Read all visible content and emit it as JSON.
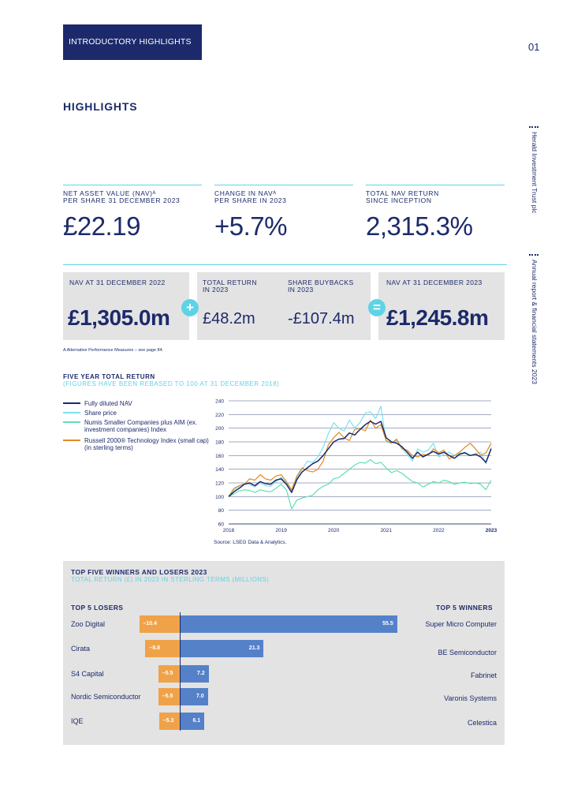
{
  "header": {
    "section_tab": "INTRODUCTORY HIGHLIGHTS",
    "page_number": "01",
    "heading": "HIGHLIGHTS"
  },
  "side": {
    "company": "Herald Investment Trust plc",
    "report": "Annual report & financial statements 2023"
  },
  "kpis": [
    {
      "label_line1": "NET ASSET VALUE (NAV)ᴬ",
      "label_line2": "PER SHARE 31 DECEMBER 2023",
      "value": "£22.19"
    },
    {
      "label_line1": "CHANGE IN NAVᴬ",
      "label_line2": "PER SHARE IN 2023",
      "value": "+5.7%"
    },
    {
      "label_line1": "TOTAL NAV RETURN",
      "label_line2": "SINCE INCEPTION",
      "value": "2,315.3%"
    }
  ],
  "bridge": {
    "start_label": "NAV AT 31 DECEMBER 2022",
    "start_value": "£1,305.0m",
    "plus_symbol": "+",
    "return_label_line1": "TOTAL RETURN",
    "return_label_line2": "IN 2023",
    "return_value": "£48.2m",
    "buyback_label_line1": "SHARE BUYBACKS",
    "buyback_label_line2": "IN 2023",
    "buyback_value": "-£107.4m",
    "equals_symbol": "=",
    "end_label": "NAV AT 31 DECEMBER 2023",
    "end_value": "£1,245.8m"
  },
  "footnote": "A     Alternative Performance Measures – see page 84.",
  "chart_data": {
    "type": "line",
    "title": "FIVE YEAR TOTAL RETURN",
    "subtitle": "(FIGURES HAVE BEEN REBASED TO 100 AT 31 DECEMBER 2018)",
    "x_ticks": [
      "2018",
      "2019",
      "2020",
      "2021",
      "2022",
      "2023"
    ],
    "ylim": [
      60,
      240
    ],
    "y_ticks": [
      60,
      80,
      100,
      120,
      140,
      160,
      180,
      200,
      220,
      240
    ],
    "grid": true,
    "legend_position": "left",
    "source": "Source: LSEG Data & Analytics.",
    "series": [
      {
        "name": "Fully diluted NAV",
        "color": "#1c2a6b",
        "x": [
          2018.0,
          2018.1,
          2018.2,
          2018.3,
          2018.4,
          2018.5,
          2018.6,
          2018.7,
          2018.8,
          2018.9,
          2019.0,
          2019.1,
          2019.2,
          2019.3,
          2019.4,
          2019.5,
          2019.6,
          2019.7,
          2019.8,
          2019.9,
          2020.0,
          2020.1,
          2020.2,
          2020.3,
          2020.4,
          2020.5,
          2020.6,
          2020.7,
          2020.8,
          2020.9,
          2021.0,
          2021.1,
          2021.2,
          2021.3,
          2021.4,
          2021.5,
          2021.6,
          2021.7,
          2021.8,
          2021.9,
          2022.0,
          2022.1,
          2022.2,
          2022.3,
          2022.4,
          2022.5,
          2022.6,
          2022.7,
          2022.8,
          2022.9,
          2023.0
        ],
        "y": [
          100,
          107,
          112,
          118,
          120,
          116,
          122,
          119,
          118,
          124,
          126,
          118,
          106,
          125,
          136,
          142,
          148,
          152,
          160,
          170,
          180,
          184,
          185,
          193,
          190,
          198,
          205,
          210,
          206,
          210,
          186,
          180,
          178,
          173,
          165,
          156,
          165,
          158,
          162,
          166,
          162,
          165,
          160,
          156,
          162,
          164,
          160,
          162,
          158,
          150,
          170
        ]
      },
      {
        "name": "Share price",
        "color": "#7fe0ee",
        "x": [
          2018.0,
          2018.1,
          2018.2,
          2018.3,
          2018.4,
          2018.5,
          2018.6,
          2018.7,
          2018.8,
          2018.9,
          2019.0,
          2019.1,
          2019.2,
          2019.3,
          2019.4,
          2019.5,
          2019.6,
          2019.7,
          2019.8,
          2019.9,
          2020.0,
          2020.1,
          2020.2,
          2020.3,
          2020.4,
          2020.5,
          2020.6,
          2020.7,
          2020.8,
          2020.9,
          2021.0,
          2021.1,
          2021.2,
          2021.3,
          2021.4,
          2021.5,
          2021.6,
          2021.7,
          2021.8,
          2021.9,
          2022.0,
          2022.1,
          2022.2,
          2022.3,
          2022.4,
          2022.5,
          2022.6,
          2022.7,
          2022.8,
          2022.9,
          2023.0
        ],
        "y": [
          100,
          110,
          115,
          120,
          118,
          114,
          120,
          116,
          115,
          122,
          128,
          120,
          108,
          128,
          140,
          152,
          150,
          158,
          172,
          192,
          208,
          200,
          196,
          212,
          200,
          208,
          222,
          224,
          214,
          232,
          180,
          178,
          182,
          170,
          162,
          152,
          170,
          165,
          168,
          178,
          158,
          162,
          165,
          160,
          163,
          165,
          160,
          162,
          165,
          148,
          172
        ]
      },
      {
        "name": "Numis Smaller Companies plus AIM (ex. investment companies) Index",
        "color": "#5fe0b0",
        "x": [
          2018.0,
          2018.1,
          2018.2,
          2018.3,
          2018.4,
          2018.5,
          2018.6,
          2018.7,
          2018.8,
          2018.9,
          2019.0,
          2019.1,
          2019.2,
          2019.3,
          2019.4,
          2019.5,
          2019.6,
          2019.7,
          2019.8,
          2019.9,
          2020.0,
          2020.1,
          2020.2,
          2020.3,
          2020.4,
          2020.5,
          2020.6,
          2020.7,
          2020.8,
          2020.9,
          2021.0,
          2021.1,
          2021.2,
          2021.3,
          2021.4,
          2021.5,
          2021.6,
          2021.7,
          2021.8,
          2021.9,
          2022.0,
          2022.1,
          2022.2,
          2022.3,
          2022.4,
          2022.5,
          2022.6,
          2022.7,
          2022.8,
          2022.9,
          2023.0
        ],
        "y": [
          100,
          104,
          108,
          110,
          109,
          106,
          110,
          108,
          107,
          112,
          118,
          110,
          82,
          95,
          98,
          100,
          102,
          110,
          115,
          118,
          126,
          128,
          134,
          140,
          146,
          150,
          149,
          154,
          148,
          150,
          142,
          135,
          138,
          134,
          128,
          122,
          120,
          114,
          118,
          122,
          120,
          124,
          122,
          118,
          120,
          121,
          119,
          120,
          118,
          110,
          124
        ]
      },
      {
        "name": "Russell 2000® Technology Index (small cap) (in sterling terms)",
        "color": "#e08a20",
        "x": [
          2018.0,
          2018.1,
          2018.2,
          2018.3,
          2018.4,
          2018.5,
          2018.6,
          2018.7,
          2018.8,
          2018.9,
          2019.0,
          2019.1,
          2019.2,
          2019.3,
          2019.4,
          2019.5,
          2019.6,
          2019.7,
          2019.8,
          2019.9,
          2020.0,
          2020.1,
          2020.2,
          2020.3,
          2020.4,
          2020.5,
          2020.6,
          2020.7,
          2020.8,
          2020.9,
          2021.0,
          2021.1,
          2021.2,
          2021.3,
          2021.4,
          2021.5,
          2021.6,
          2021.7,
          2021.8,
          2021.9,
          2022.0,
          2022.1,
          2022.2,
          2022.3,
          2022.4,
          2022.5,
          2022.6,
          2022.7,
          2022.8,
          2022.9,
          2023.0
        ],
        "y": [
          100,
          112,
          116,
          118,
          126,
          124,
          132,
          126,
          124,
          130,
          132,
          122,
          110,
          130,
          142,
          138,
          136,
          140,
          152,
          176,
          186,
          194,
          186,
          182,
          198,
          200,
          196,
          212,
          200,
          205,
          182,
          178,
          184,
          170,
          168,
          160,
          158,
          162,
          160,
          170,
          164,
          168,
          155,
          160,
          165,
          172,
          178,
          170,
          160,
          164,
          178
        ]
      }
    ]
  },
  "winners_losers": {
    "title": "TOP FIVE WINNERS AND LOSERS 2023",
    "subtitle": "TOTAL RETURN (£) IN 2023 IN STERLING TERMS (MILLIONS)",
    "losers_heading": "TOP 5 LOSERS",
    "winners_heading": "TOP 5 WINNERS",
    "losers": [
      {
        "name": "Zoo Digital",
        "value": -10.4,
        "label": "–10.4"
      },
      {
        "name": "Cirata",
        "value": -8.8,
        "label": "–8.8"
      },
      {
        "name": "S4 Capital",
        "value": -5.5,
        "label": "–5.5"
      },
      {
        "name": "Nordic Semiconductor",
        "value": -5.5,
        "label": "–5.5"
      },
      {
        "name": "IQE",
        "value": -5.3,
        "label": "–5.3"
      }
    ],
    "winners": [
      {
        "name": "Super Micro Computer",
        "value": 55.5,
        "label": "55.5"
      },
      {
        "name": "BE Semiconductor",
        "value": 21.3,
        "label": "21.3"
      },
      {
        "name": "Fabrinet",
        "value": 7.2,
        "label": "7.2"
      },
      {
        "name": "Varonis Systems",
        "value": 7.0,
        "label": "7.0"
      },
      {
        "name": "Celestica",
        "value": 6.1,
        "label": "6.1"
      }
    ]
  }
}
